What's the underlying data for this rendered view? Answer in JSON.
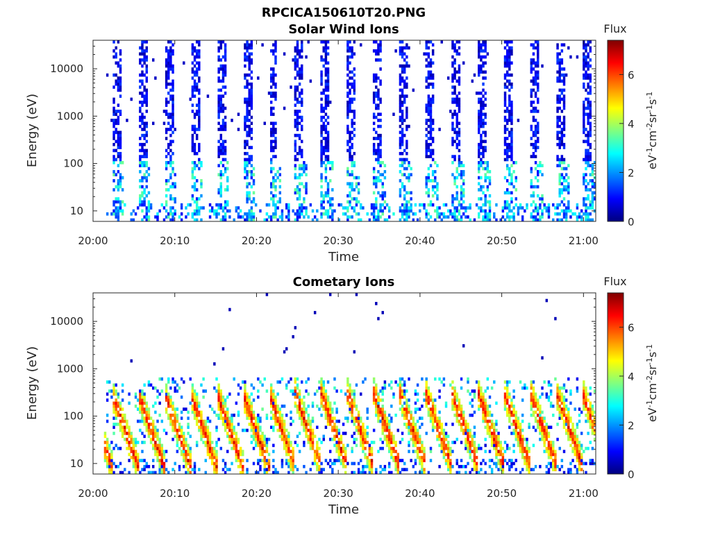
{
  "figure_title": "RPCICA150610T20.PNG",
  "chart_data": [
    {
      "type": "heatmap",
      "title": "Solar Wind Ions",
      "xlabel": "Time",
      "ylabel": "Energy (eV)",
      "x_ticks": [
        "20:00",
        "20:10",
        "20:20",
        "20:30",
        "20:40",
        "20:50",
        "21:00"
      ],
      "x_tick_minutes": [
        0,
        10,
        20,
        30,
        40,
        50,
        60
      ],
      "xlim_minutes": [
        0,
        61.5
      ],
      "y_scale": "log",
      "y_ticks": [
        10,
        100,
        1000,
        10000
      ],
      "y_tick_labels": [
        "10",
        "100",
        "1000",
        "10000"
      ],
      "ylim": [
        6,
        40000
      ],
      "colorbar": {
        "label": "Flux",
        "units": "eV-1cm-2sr-1s-1",
        "ticks": [
          0,
          2,
          4,
          6
        ],
        "range": [
          0,
          7.4
        ],
        "colormap": "jet"
      },
      "sweep_period_min": 3.2,
      "sweep_start_min": 2.2,
      "description_of_pattern": "periodic vertical bands of low flux (blue) from ~100 eV to ~30000 eV, with cyan/green patches below 100 eV"
    },
    {
      "type": "heatmap",
      "title": "Cometary Ions",
      "xlabel": "Time",
      "ylabel": "Energy (eV)",
      "x_ticks": [
        "20:00",
        "20:10",
        "20:20",
        "20:30",
        "20:40",
        "20:50",
        "21:00"
      ],
      "x_tick_minutes": [
        0,
        10,
        20,
        30,
        40,
        50,
        60
      ],
      "xlim_minutes": [
        0,
        61.5
      ],
      "y_scale": "log",
      "y_ticks": [
        10,
        100,
        1000,
        10000
      ],
      "y_tick_labels": [
        "10",
        "100",
        "1000",
        "10000"
      ],
      "ylim": [
        6,
        40000
      ],
      "colorbar": {
        "label": "Flux",
        "units": "eV-1cm-2sr-1s-1",
        "ticks": [
          0,
          2,
          4,
          6
        ],
        "range": [
          0,
          7.4
        ],
        "colormap": "jet"
      },
      "sweep_period_min": 3.2,
      "sweep_start_min": 2.2,
      "description_of_pattern": "periodic high flux (yellow/orange/red) streaks between ~6 eV and ~500 eV, descending in energy over each sweep"
    }
  ]
}
